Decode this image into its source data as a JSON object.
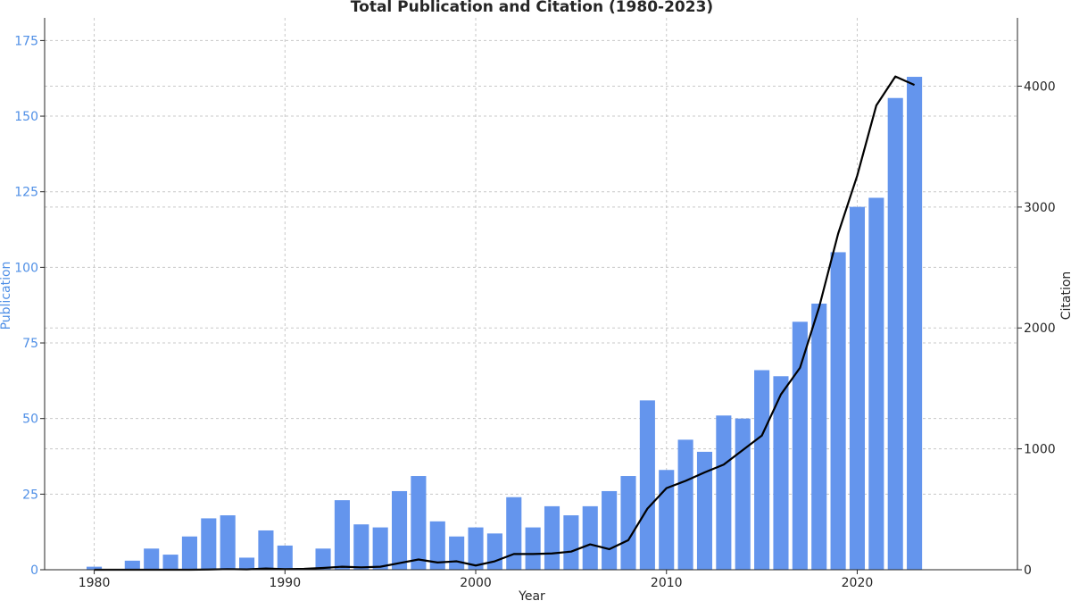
{
  "chart_data": {
    "type": "bar+line",
    "title": "Total Publication and Citation (1980-2023)",
    "xlabel": "Year",
    "ylabel_left": "Publication",
    "ylabel_right": "Citation",
    "x": [
      1980,
      1981,
      1982,
      1983,
      1984,
      1985,
      1986,
      1987,
      1988,
      1989,
      1990,
      1991,
      1992,
      1993,
      1994,
      1995,
      1996,
      1997,
      1998,
      1999,
      2000,
      2001,
      2002,
      2003,
      2004,
      2005,
      2006,
      2007,
      2008,
      2009,
      2010,
      2011,
      2012,
      2013,
      2014,
      2015,
      2016,
      2017,
      2018,
      2019,
      2020,
      2021,
      2022,
      2023
    ],
    "x_ticks": [
      1980,
      1990,
      2000,
      2010,
      2020
    ],
    "xlim": [
      1977.4,
      2028.4
    ],
    "ylim_left": [
      0,
      182.5
    ],
    "ylim_right": [
      0,
      4565
    ],
    "y_ticks_left": [
      0,
      25,
      50,
      75,
      100,
      125,
      150,
      175
    ],
    "y_ticks_right": [
      0,
      1000,
      2000,
      3000,
      4000
    ],
    "grid": true,
    "series": [
      {
        "name": "Publication",
        "axis": "left",
        "kind": "bar",
        "color": "#6495ed",
        "values": [
          1,
          0,
          3,
          7,
          5,
          11,
          17,
          18,
          4,
          13,
          8,
          0,
          7,
          23,
          15,
          14,
          26,
          31,
          16,
          11,
          14,
          12,
          24,
          14,
          21,
          18,
          21,
          26,
          31,
          56,
          33,
          43,
          39,
          51,
          50,
          66,
          64,
          82,
          88,
          105,
          120,
          123,
          156,
          163
        ]
      },
      {
        "name": "Citation",
        "axis": "right",
        "kind": "line",
        "color": "#000000",
        "values": [
          0,
          0,
          0,
          0,
          0,
          0,
          2,
          5,
          3,
          10,
          5,
          8,
          15,
          25,
          20,
          25,
          55,
          85,
          60,
          70,
          35,
          70,
          130,
          130,
          135,
          150,
          210,
          170,
          245,
          505,
          675,
          735,
          805,
          870,
          990,
          1110,
          1450,
          1670,
          2170,
          2780,
          3260,
          3840,
          4080,
          4010
        ]
      }
    ]
  }
}
